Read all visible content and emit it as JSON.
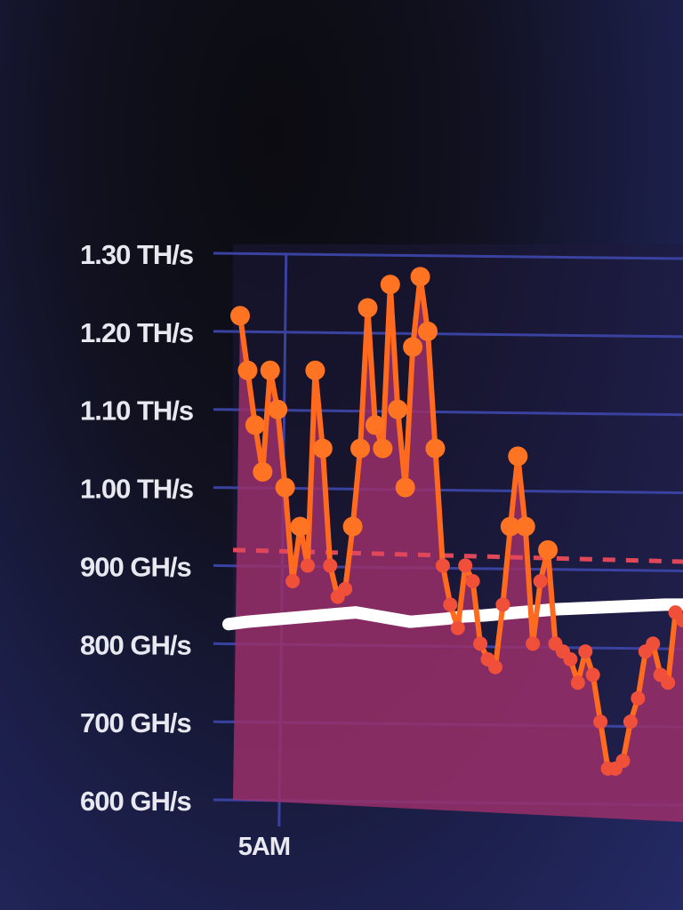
{
  "chart_data": {
    "type": "line",
    "title": "",
    "xlabel": "",
    "ylabel": "",
    "y_unit": "GH/s",
    "ylim": [
      600,
      1300
    ],
    "y_ticks": [
      {
        "value": 1300,
        "label": "1.30 TH/s"
      },
      {
        "value": 1200,
        "label": "1.20 TH/s"
      },
      {
        "value": 1100,
        "label": "1.10 TH/s"
      },
      {
        "value": 1000,
        "label": "1.00 TH/s"
      },
      {
        "value": 900,
        "label": "900 GH/s"
      },
      {
        "value": 800,
        "label": "800 GH/s"
      },
      {
        "value": 700,
        "label": "700 GH/s"
      },
      {
        "value": 600,
        "label": "600 GH/s"
      }
    ],
    "x_ticks": [
      {
        "index": 4,
        "label": "5AM"
      }
    ],
    "grid": true,
    "series": [
      {
        "role": "hashrate",
        "color": "#ff6a1f",
        "markers": true,
        "values": [
          1220,
          1150,
          1080,
          1020,
          1150,
          1100,
          1000,
          880,
          950,
          900,
          1150,
          1050,
          900,
          860,
          870,
          950,
          1050,
          1230,
          1080,
          1050,
          1260,
          1100,
          1000,
          1180,
          1270,
          1200,
          1050,
          900,
          850,
          820,
          900,
          880,
          800,
          780,
          770,
          850,
          950,
          1040,
          950,
          800,
          880,
          920,
          800,
          790,
          780,
          750,
          790,
          760,
          700,
          640,
          640,
          650,
          700,
          730,
          790,
          800,
          760,
          750,
          840,
          830
        ]
      },
      {
        "role": "average",
        "color": "#ffffff",
        "markers": false,
        "values": [
          825,
          828,
          830,
          832,
          834,
          836,
          838,
          840,
          836,
          832,
          828,
          830,
          832,
          835,
          836,
          838,
          840,
          842,
          844,
          845,
          846,
          847,
          848,
          849,
          850,
          850
        ]
      },
      {
        "role": "reference",
        "color": "#e0485a",
        "dashed": true,
        "markers": false,
        "values": [
          920,
          905
        ]
      }
    ],
    "colors": {
      "area_fill": "#9a2f6a",
      "gridline": "#3a42a0"
    }
  }
}
